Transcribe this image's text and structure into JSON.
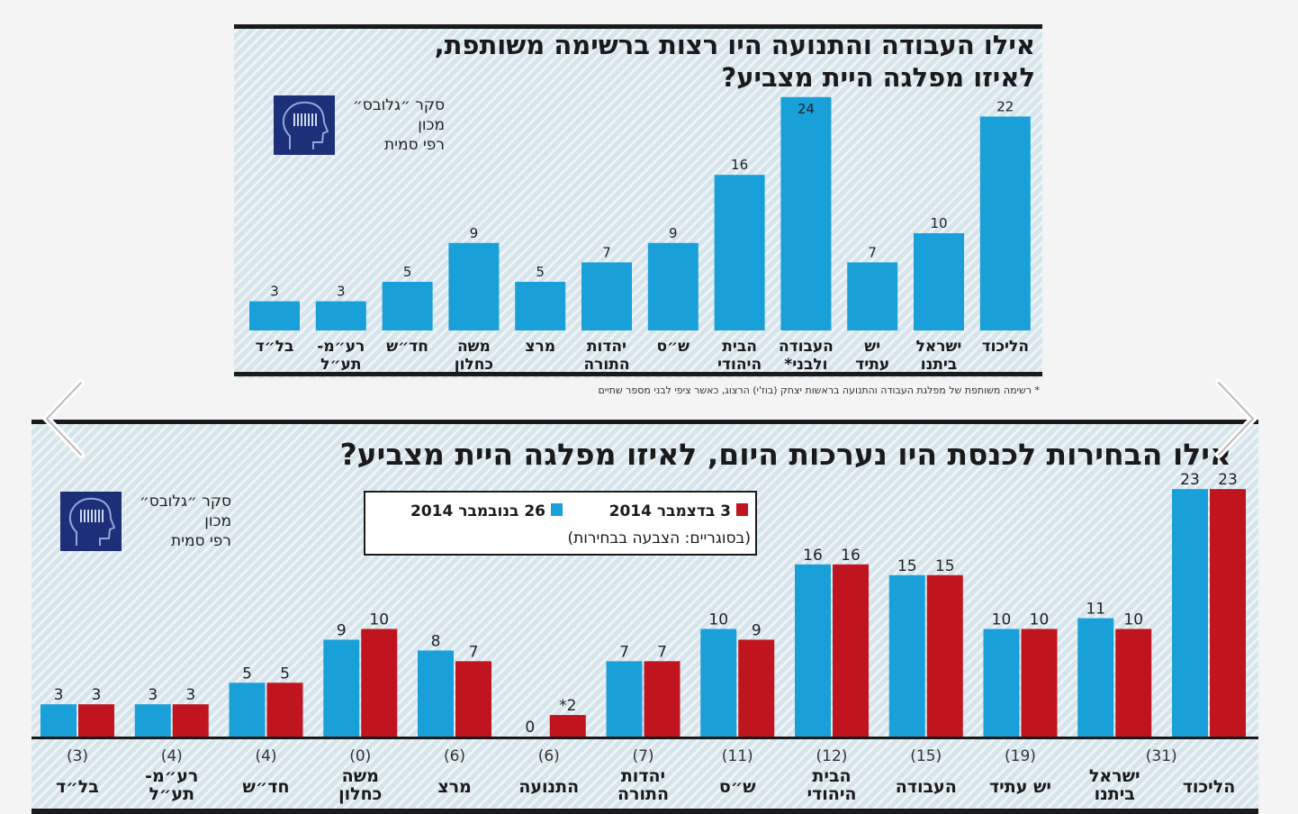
{
  "colors": {
    "blue": "#1aa0d8",
    "red": "#c0141e",
    "panel_bg": "#dbe8ef",
    "dark": "#1a1a1a",
    "logo": "#1c2f78"
  },
  "logo": {
    "icon": "head-barcode-icon",
    "lines": [
      "סקר ״גלובס״",
      "מכון",
      "רפי סמית"
    ]
  },
  "carousel": {
    "prev_icon": "chevron-left-icon",
    "next_icon": "chevron-right-icon"
  },
  "chart_data": [
    {
      "type": "bar",
      "title_lines": [
        "אילו העבודה והתנועה היו רצות ברשימה משותפת,",
        "לאיזו מפלגה היית מצביע?"
      ],
      "categories": [
        [
          "בל״ד"
        ],
        [
          "רע״מ-",
          "תע״ל"
        ],
        [
          "חד״ש"
        ],
        [
          "משה",
          "כחלון"
        ],
        [
          "מרצ"
        ],
        [
          "יהדות",
          "התורה"
        ],
        [
          "ש״ס"
        ],
        [
          "הבית",
          "היהודי"
        ],
        [
          "העבודה",
          "ולבני*"
        ],
        [
          "יש",
          "עתיד"
        ],
        [
          "ישראל",
          "ביתנו"
        ],
        [
          "הליכוד"
        ]
      ],
      "values": [
        3,
        3,
        5,
        9,
        5,
        7,
        9,
        16,
        24,
        7,
        10,
        22
      ],
      "footnote": "* רשימה משותפת של מפלגת העבודה והתנועה בראשות יצחק (בוז'י) הרצוג, כאשר ציפי לבני מספר שתיים"
    },
    {
      "type": "bar",
      "title": "אילו הבחירות לכנסת היו נערכות היום, לאיזו מפלגה היית מצביע?",
      "legend": {
        "note": "(בסוגריים: הצבעה בבחירות)"
      },
      "categories": [
        [
          "בל״ד"
        ],
        [
          "רע״מ-",
          "תע״ל"
        ],
        [
          "חד״ש"
        ],
        [
          "משה",
          "כחלון"
        ],
        [
          "מרצ"
        ],
        [
          "התנועה"
        ],
        [
          "יהדות",
          "התורה"
        ],
        [
          "ש״ס"
        ],
        [
          "הבית",
          "היהודי"
        ],
        [
          "העבודה"
        ],
        [
          "יש עתיד"
        ],
        [
          "ישראל",
          "ביתנו"
        ],
        [
          "הליכוד"
        ]
      ],
      "previous_election": [
        "(3)",
        "(4)",
        "(4)",
        "(0)",
        "(6)",
        "(6)",
        "(7)",
        "(11)",
        "(12)",
        "(15)",
        "(19)",
        "(31)",
        ""
      ],
      "series": [
        {
          "name": "26 בנובמבר 2014",
          "color": "#1aa0d8",
          "values": [
            3,
            3,
            5,
            9,
            8,
            0,
            7,
            10,
            16,
            15,
            10,
            11,
            23
          ],
          "labels": [
            "3",
            "3",
            "5",
            "9",
            "8",
            "0",
            "7",
            "10",
            "16",
            "15",
            "10",
            "11",
            "23"
          ]
        },
        {
          "name": "3 בדצמבר 2014",
          "color": "#c0141e",
          "values": [
            3,
            3,
            5,
            10,
            7,
            2,
            7,
            9,
            16,
            15,
            10,
            10,
            23
          ],
          "labels": [
            "3",
            "3",
            "5",
            "10",
            "7",
            "*2",
            "7",
            "9",
            "16",
            "15",
            "10",
            "10",
            "23"
          ]
        }
      ]
    }
  ]
}
